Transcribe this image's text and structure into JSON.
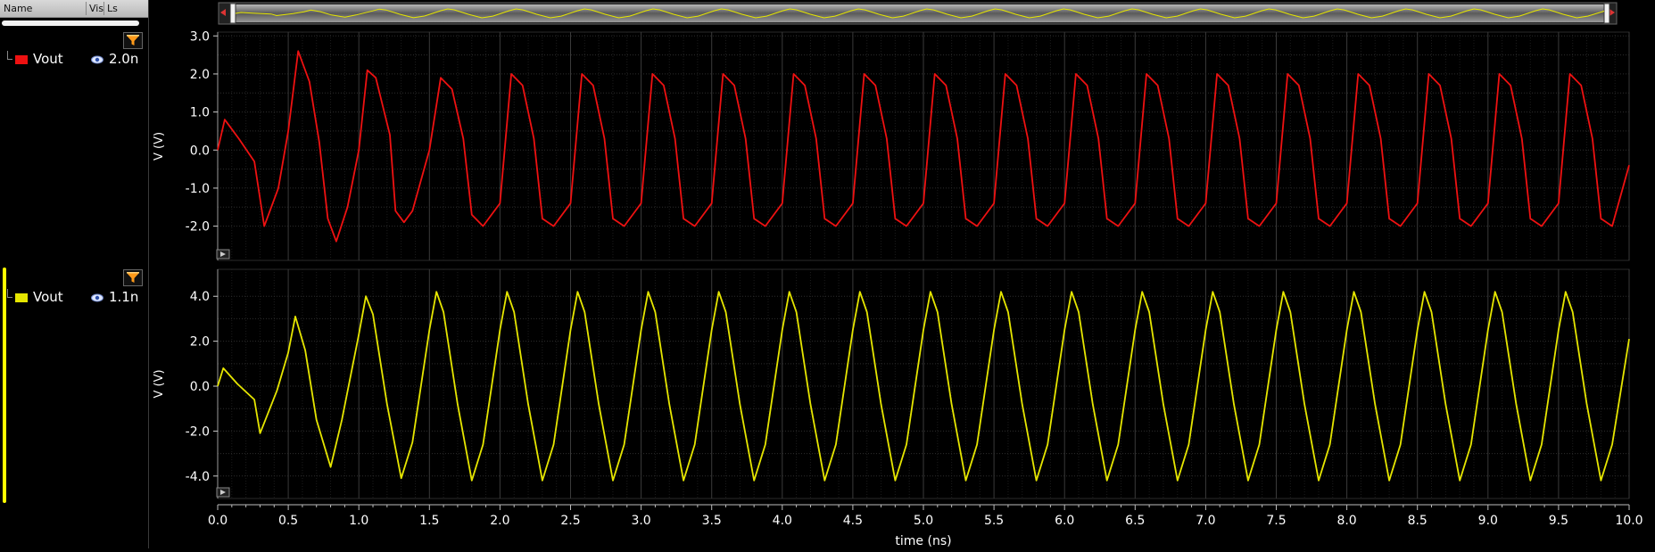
{
  "sidebar": {
    "columns": {
      "name": "Name",
      "vis": "Vis",
      "ls": "Ls"
    },
    "signals": [
      {
        "name": "Vout",
        "corner": "2.0n",
        "color": "#ee1111",
        "visible_icon": "eye-icon"
      },
      {
        "name": "Vout",
        "corner": "1.1n",
        "color": "#e6e600",
        "visible_icon": "eye-icon"
      }
    ]
  },
  "chart_data": [
    {
      "type": "line",
      "title": "",
      "xlabel": "time (ns)",
      "ylabel": "V (V)",
      "xlim": [
        0,
        10
      ],
      "ylim": [
        -2.9,
        3.1
      ],
      "yticks": [
        "3.0",
        "2.0",
        "1.0",
        "0.0",
        "-1.0",
        "-2.0"
      ],
      "ytick_values": [
        3,
        2,
        1,
        0,
        -1,
        -2
      ],
      "series": [
        {
          "name": "Vout",
          "color": "#ee1111",
          "x": [
            0,
            0.05,
            0.15,
            0.26,
            0.33,
            0.43,
            0.5,
            0.57,
            0.65,
            0.72,
            0.78,
            0.84,
            0.92,
            1.0,
            1.06,
            1.12,
            1.22,
            1.26,
            1.32,
            1.38,
            1.5,
            1.58,
            1.66,
            1.74,
            1.8,
            1.88,
            2.0,
            2.08,
            2.16,
            2.24,
            2.3,
            2.38,
            2.5,
            2.58,
            2.66,
            2.74,
            2.8,
            2.88,
            3.0,
            3.08,
            3.16,
            3.24,
            3.3,
            3.38,
            3.5,
            3.58,
            3.66,
            3.74,
            3.8,
            3.88,
            4.0,
            4.08,
            4.16,
            4.24,
            4.3,
            4.38,
            4.5,
            4.58,
            4.66,
            4.74,
            4.8,
            4.88,
            5.0,
            5.08,
            5.16,
            5.24,
            5.3,
            5.38,
            5.5,
            5.58,
            5.66,
            5.74,
            5.8,
            5.88,
            6.0,
            6.08,
            6.16,
            6.24,
            6.3,
            6.38,
            6.5,
            6.58,
            6.66,
            6.74,
            6.8,
            6.88,
            7.0,
            7.08,
            7.16,
            7.24,
            7.3,
            7.38,
            7.5,
            7.58,
            7.66,
            7.74,
            7.8,
            7.88,
            8.0,
            8.08,
            8.16,
            8.24,
            8.3,
            8.38,
            8.5,
            8.58,
            8.66,
            8.74,
            8.8,
            8.88,
            9.0,
            9.08,
            9.16,
            9.24,
            9.3,
            9.38,
            9.5,
            9.58,
            9.66,
            9.74,
            9.8,
            9.88,
            10.0
          ],
          "y": [
            0.0,
            0.8,
            0.3,
            -0.3,
            -2.0,
            -1.0,
            0.5,
            2.6,
            1.8,
            0.2,
            -1.8,
            -2.4,
            -1.5,
            0.0,
            2.1,
            1.9,
            0.4,
            -1.6,
            -1.9,
            -1.6,
            0.0,
            1.9,
            1.6,
            0.3,
            -1.7,
            -2.0,
            -1.4,
            2.0,
            1.7,
            0.3,
            -1.8,
            -2.0,
            -1.4,
            2.0,
            1.7,
            0.3,
            -1.8,
            -2.0,
            -1.4,
            2.0,
            1.7,
            0.3,
            -1.8,
            -2.0,
            -1.4,
            2.0,
            1.7,
            0.3,
            -1.8,
            -2.0,
            -1.4,
            2.0,
            1.7,
            0.3,
            -1.8,
            -2.0,
            -1.4,
            2.0,
            1.7,
            0.3,
            -1.8,
            -2.0,
            -1.4,
            2.0,
            1.7,
            0.3,
            -1.8,
            -2.0,
            -1.4,
            2.0,
            1.7,
            0.3,
            -1.8,
            -2.0,
            -1.4,
            2.0,
            1.7,
            0.3,
            -1.8,
            -2.0,
            -1.4,
            2.0,
            1.7,
            0.3,
            -1.8,
            -2.0,
            -1.4,
            2.0,
            1.7,
            0.3,
            -1.8,
            -2.0,
            -1.4,
            2.0,
            1.7,
            0.3,
            -1.8,
            -2.0,
            -1.4,
            2.0,
            1.7,
            0.3,
            -1.8,
            -2.0,
            -1.4,
            2.0,
            1.7,
            0.3,
            -1.8,
            -2.0,
            -1.4,
            2.0,
            1.7,
            0.3,
            -1.8,
            -2.0,
            -1.4,
            2.0,
            1.7,
            0.3,
            -1.8,
            -2.0,
            -0.4
          ]
        }
      ]
    },
    {
      "type": "line",
      "title": "",
      "xlabel": "time (ns)",
      "ylabel": "V (V)",
      "xlim": [
        0,
        10
      ],
      "ylim": [
        -5.0,
        5.2
      ],
      "yticks": [
        "4.0",
        "2.0",
        "0.0",
        "-2.0",
        "-4.0"
      ],
      "ytick_values": [
        4,
        2,
        0,
        -2,
        -4
      ],
      "xticks": [
        "0.0",
        "0.5",
        "1.0",
        "1.5",
        "2.0",
        "2.5",
        "3.0",
        "3.5",
        "4.0",
        "4.5",
        "5.0",
        "5.5",
        "6.0",
        "6.5",
        "7.0",
        "7.5",
        "8.0",
        "8.5",
        "9.0",
        "9.5",
        "10.0"
      ],
      "xtick_values": [
        0,
        0.5,
        1,
        1.5,
        2,
        2.5,
        3,
        3.5,
        4,
        4.5,
        5,
        5.5,
        6,
        6.5,
        7,
        7.5,
        8,
        8.5,
        9,
        9.5,
        10
      ],
      "series": [
        {
          "name": "Vout",
          "color": "#e6e600",
          "x": [
            0,
            0.04,
            0.14,
            0.26,
            0.3,
            0.42,
            0.5,
            0.55,
            0.62,
            0.7,
            0.8,
            0.88,
            1.0,
            1.05,
            1.1,
            1.2,
            1.3,
            1.38,
            1.5,
            1.55,
            1.6,
            1.7,
            1.8,
            1.88,
            2.0,
            2.05,
            2.1,
            2.2,
            2.3,
            2.38,
            2.5,
            2.55,
            2.6,
            2.7,
            2.8,
            2.88,
            3.0,
            3.05,
            3.1,
            3.2,
            3.3,
            3.38,
            3.5,
            3.55,
            3.6,
            3.7,
            3.8,
            3.88,
            4.0,
            4.05,
            4.1,
            4.2,
            4.3,
            4.38,
            4.5,
            4.55,
            4.6,
            4.7,
            4.8,
            4.88,
            5.0,
            5.05,
            5.1,
            5.2,
            5.3,
            5.38,
            5.5,
            5.55,
            5.6,
            5.7,
            5.8,
            5.88,
            6.0,
            6.05,
            6.1,
            6.2,
            6.3,
            6.38,
            6.5,
            6.55,
            6.6,
            6.7,
            6.8,
            6.88,
            7.0,
            7.05,
            7.1,
            7.2,
            7.3,
            7.38,
            7.5,
            7.55,
            7.6,
            7.7,
            7.8,
            7.88,
            8.0,
            8.05,
            8.1,
            8.2,
            8.3,
            8.38,
            8.5,
            8.55,
            8.6,
            8.7,
            8.8,
            8.88,
            9.0,
            9.05,
            9.1,
            9.2,
            9.3,
            9.38,
            9.5,
            9.55,
            9.6,
            9.7,
            9.8,
            9.88,
            10.0
          ],
          "y": [
            0.0,
            0.8,
            0.1,
            -0.6,
            -2.1,
            -0.2,
            1.5,
            3.1,
            1.6,
            -1.5,
            -3.6,
            -1.5,
            2.3,
            4.0,
            3.2,
            -0.8,
            -4.1,
            -2.5,
            2.5,
            4.2,
            3.3,
            -0.8,
            -4.2,
            -2.6,
            2.5,
            4.2,
            3.3,
            -0.8,
            -4.2,
            -2.6,
            2.5,
            4.2,
            3.3,
            -0.8,
            -4.2,
            -2.6,
            2.5,
            4.2,
            3.3,
            -0.8,
            -4.2,
            -2.6,
            2.5,
            4.2,
            3.3,
            -0.8,
            -4.2,
            -2.6,
            2.5,
            4.2,
            3.3,
            -0.8,
            -4.2,
            -2.6,
            2.5,
            4.2,
            3.3,
            -0.8,
            -4.2,
            -2.6,
            2.5,
            4.2,
            3.3,
            -0.8,
            -4.2,
            -2.6,
            2.5,
            4.2,
            3.3,
            -0.8,
            -4.2,
            -2.6,
            2.5,
            4.2,
            3.3,
            -0.8,
            -4.2,
            -2.6,
            2.5,
            4.2,
            3.3,
            -0.8,
            -4.2,
            -2.6,
            2.5,
            4.2,
            3.3,
            -0.8,
            -4.2,
            -2.6,
            2.5,
            4.2,
            3.3,
            -0.8,
            -4.2,
            -2.6,
            2.5,
            4.2,
            3.3,
            -0.8,
            -4.2,
            -2.6,
            2.5,
            4.2,
            3.3,
            -0.8,
            -4.2,
            -2.6,
            2.5,
            4.2,
            3.3,
            -0.8,
            -4.2,
            -2.6,
            2.5,
            4.2,
            3.3,
            -0.8,
            -4.2,
            -2.6,
            2.1
          ]
        }
      ]
    }
  ]
}
